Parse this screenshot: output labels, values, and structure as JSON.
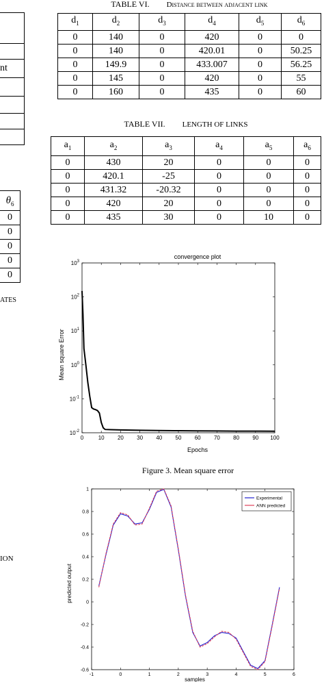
{
  "left_column": {
    "fragment_text_1": "nt",
    "theta_header": "θ",
    "theta_sub": "6",
    "theta_values": [
      "0",
      "0",
      "0",
      "0",
      "0"
    ],
    "fragment_text_2": "ATES",
    "fragment_text_3": "ION"
  },
  "table6": {
    "number": "TABLE VI.",
    "caption": "Distance between adjacent link",
    "headers": [
      {
        "base": "d",
        "sub": "1"
      },
      {
        "base": "d",
        "sub": "2"
      },
      {
        "base": "d",
        "sub": "3"
      },
      {
        "base": "d",
        "sub": "4"
      },
      {
        "base": "d",
        "sub": "5"
      },
      {
        "base": "d",
        "sub": "6"
      }
    ],
    "rows": [
      [
        "0",
        "140",
        "0",
        "420",
        "0",
        "0"
      ],
      [
        "0",
        "140",
        "0",
        "420.01",
        "0",
        "50.25"
      ],
      [
        "0",
        "149.9",
        "0",
        "433.007",
        "0",
        "56.25"
      ],
      [
        "0",
        "145",
        "0",
        "420",
        "0",
        "55"
      ],
      [
        "0",
        "160",
        "0",
        "435",
        "0",
        "60"
      ]
    ]
  },
  "table7": {
    "number": "TABLE VII.",
    "caption": "LENGTH OF LINKS",
    "headers": [
      {
        "base": "a",
        "sub": "1"
      },
      {
        "base": "a",
        "sub": "2"
      },
      {
        "base": "a",
        "sub": "3"
      },
      {
        "base": "a",
        "sub": "4"
      },
      {
        "base": "a",
        "sub": "5"
      },
      {
        "base": "a",
        "sub": "6"
      }
    ],
    "rows": [
      [
        "0",
        "430",
        "20",
        "0",
        "0",
        "0"
      ],
      [
        "0",
        "420.1",
        "-25",
        "0",
        "0",
        "0"
      ],
      [
        "0",
        "431.32",
        "-20.32",
        "0",
        "0",
        "0"
      ],
      [
        "0",
        "420",
        "20",
        "0",
        "0",
        "0"
      ],
      [
        "0",
        "435",
        "30",
        "0",
        "10",
        "0"
      ]
    ]
  },
  "figure3_caption": "Figure 3. Mean square error",
  "chart_data": [
    {
      "type": "line",
      "title": "convergence plot",
      "xlabel": "Epochs",
      "ylabel": "Mean square Error",
      "yscale": "log",
      "xlim": [
        0,
        100
      ],
      "ylim": [
        0.01,
        1000
      ],
      "x_ticks": [
        "0",
        "10",
        "20",
        "30",
        "40",
        "50",
        "60",
        "70",
        "80",
        "90",
        "100"
      ],
      "y_ticks": [
        {
          "base": "10",
          "exp": "-2"
        },
        {
          "base": "10",
          "exp": "-1"
        },
        {
          "base": "10",
          "exp": "0"
        },
        {
          "base": "10",
          "exp": "1"
        },
        {
          "base": "10",
          "exp": "2"
        },
        {
          "base": "10",
          "exp": "3"
        }
      ],
      "series": [
        {
          "color": "#000000",
          "x": [
            0,
            0.5,
            1,
            2,
            3,
            4,
            5,
            6,
            7,
            8,
            9,
            10,
            11,
            12,
            15,
            20,
            30,
            40,
            50,
            60,
            70,
            80,
            90,
            100
          ],
          "y": [
            150,
            30,
            3,
            1,
            0.3,
            0.12,
            0.055,
            0.05,
            0.048,
            0.045,
            0.038,
            0.02,
            0.014,
            0.0125,
            0.0123,
            0.0121,
            0.0118,
            0.0116,
            0.0115,
            0.0114,
            0.0113,
            0.0112,
            0.0112,
            0.0111
          ]
        }
      ]
    },
    {
      "type": "line",
      "title": "",
      "xlabel": "samples",
      "ylabel": "predicted output",
      "xlim": [
        -1,
        6
      ],
      "ylim": [
        -0.6,
        1
      ],
      "x_ticks": [
        "-1",
        "0",
        "1",
        "2",
        "3",
        "4",
        "5",
        "6"
      ],
      "y_ticks": [
        "-0.6",
        "-0.4",
        "-0.2",
        "0",
        "0.2",
        "0.4",
        "0.6",
        "0.8",
        "1"
      ],
      "legend_position": "top-right",
      "series": [
        {
          "name": "Experimental",
          "color": "#1f1fd0",
          "x": [
            -0.75,
            -0.5,
            -0.25,
            0,
            0.25,
            0.5,
            0.75,
            1,
            1.25,
            1.5,
            1.75,
            2,
            2.25,
            2.5,
            2.75,
            3,
            3.25,
            3.5,
            3.75,
            4,
            4.25,
            4.5,
            4.75,
            5,
            5.25,
            5.5
          ],
          "y": [
            0.14,
            0.42,
            0.68,
            0.78,
            0.76,
            0.69,
            0.7,
            0.82,
            0.97,
            0.995,
            0.84,
            0.46,
            0.05,
            -0.27,
            -0.39,
            -0.36,
            -0.3,
            -0.27,
            -0.28,
            -0.32,
            -0.44,
            -0.56,
            -0.59,
            -0.52,
            -0.2,
            0.13
          ]
        },
        {
          "name": "ANN predicted",
          "color": "#e0405a",
          "x": [
            -0.75,
            -0.5,
            -0.25,
            0,
            0.25,
            0.5,
            0.75,
            1,
            1.25,
            1.5,
            1.75,
            2,
            2.25,
            2.5,
            2.75,
            3,
            3.25,
            3.5,
            3.75,
            4,
            4.25,
            4.5,
            4.75,
            5,
            5.25,
            5.5
          ],
          "y": [
            0.13,
            0.43,
            0.69,
            0.79,
            0.77,
            0.68,
            0.69,
            0.83,
            0.98,
            1.0,
            0.85,
            0.47,
            0.06,
            -0.26,
            -0.4,
            -0.37,
            -0.31,
            -0.26,
            -0.27,
            -0.33,
            -0.45,
            -0.57,
            -0.6,
            -0.53,
            -0.21,
            0.12
          ]
        }
      ]
    }
  ]
}
